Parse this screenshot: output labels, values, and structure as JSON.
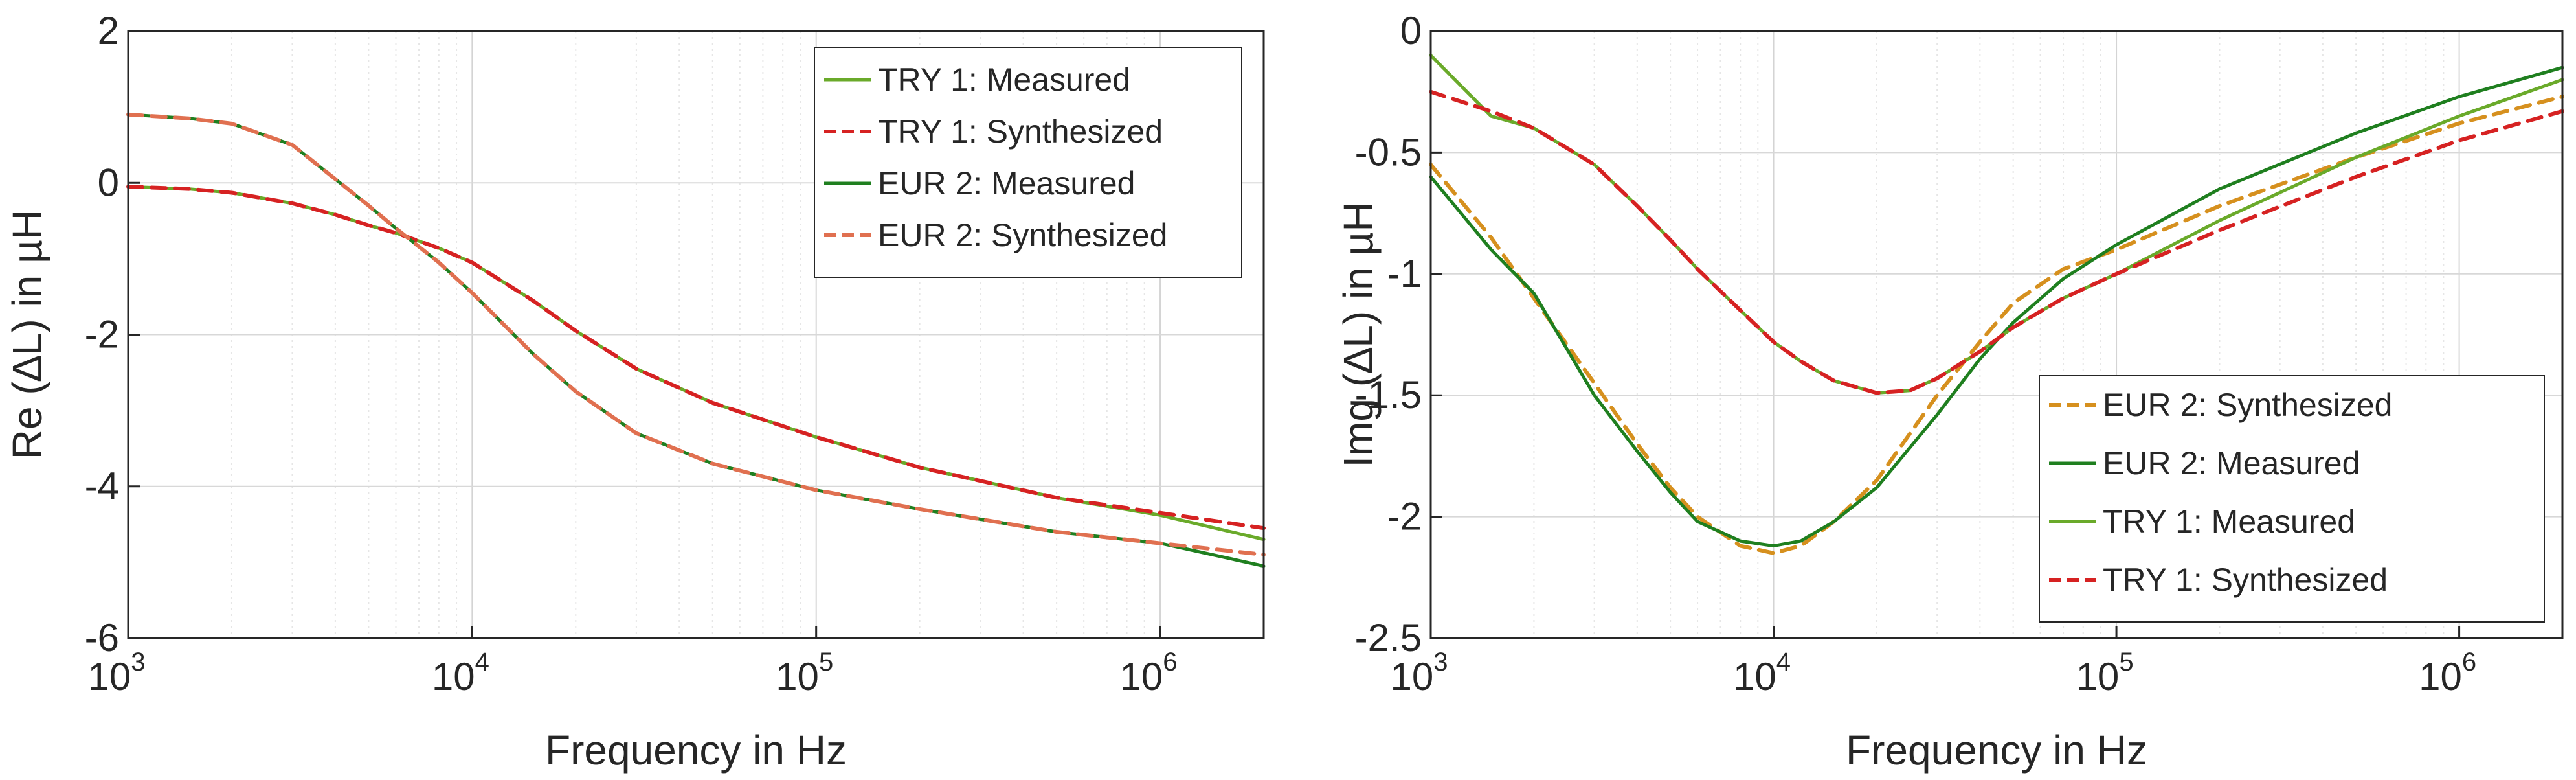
{
  "chart_data": [
    {
      "type": "line",
      "id": "left",
      "xlabel": "Frequency in Hz",
      "ylabel": "Re (∆L) in µH",
      "xscale": "log",
      "xlim": [
        1000,
        2000000
      ],
      "ylim": [
        -6,
        2
      ],
      "grid": true,
      "legend_position": "top-right",
      "x_ticks": [
        {
          "value": 1000,
          "base": "10",
          "exp": "3"
        },
        {
          "value": 10000,
          "base": "10",
          "exp": "4"
        },
        {
          "value": 100000,
          "base": "10",
          "exp": "5"
        },
        {
          "value": 1000000,
          "base": "10",
          "exp": "6"
        }
      ],
      "y_ticks": [
        {
          "value": 2,
          "label": "2"
        },
        {
          "value": 0,
          "label": "0"
        },
        {
          "value": -2,
          "label": "-2"
        },
        {
          "value": -4,
          "label": "-4"
        },
        {
          "value": -6,
          "label": "-6"
        }
      ],
      "series": [
        {
          "name": "TRY 1: Measured",
          "style": "solid",
          "color": "#6aaa2a",
          "width": 5,
          "x": [
            1000,
            1500,
            2000,
            3000,
            4000,
            5000,
            6000,
            8000,
            10000,
            15000,
            20000,
            30000,
            50000,
            100000,
            200000,
            500000,
            1000000,
            2000000
          ],
          "y": [
            -0.05,
            -0.08,
            -0.13,
            -0.27,
            -0.42,
            -0.56,
            -0.66,
            -0.86,
            -1.05,
            -1.55,
            -1.95,
            -2.45,
            -2.9,
            -3.35,
            -3.75,
            -4.15,
            -4.38,
            -4.7
          ]
        },
        {
          "name": "TRY 1: Synthesized",
          "style": "dashed",
          "color": "#d62222",
          "width": 6,
          "x": [
            1000,
            1500,
            2000,
            3000,
            4000,
            5000,
            6000,
            8000,
            10000,
            15000,
            20000,
            30000,
            50000,
            100000,
            200000,
            500000,
            1000000,
            2000000
          ],
          "y": [
            -0.05,
            -0.08,
            -0.13,
            -0.27,
            -0.42,
            -0.56,
            -0.66,
            -0.86,
            -1.05,
            -1.55,
            -1.95,
            -2.45,
            -2.9,
            -3.35,
            -3.75,
            -4.15,
            -4.35,
            -4.55
          ]
        },
        {
          "name": "EUR 2: Measured",
          "style": "solid",
          "color": "#1f7f1f",
          "width": 5,
          "x": [
            1000,
            1500,
            2000,
            3000,
            4000,
            5000,
            6000,
            8000,
            10000,
            15000,
            20000,
            30000,
            50000,
            100000,
            200000,
            500000,
            1000000,
            2000000
          ],
          "y": [
            0.9,
            0.85,
            0.78,
            0.5,
            0.05,
            -0.3,
            -0.6,
            -1.05,
            -1.45,
            -2.25,
            -2.75,
            -3.3,
            -3.7,
            -4.05,
            -4.3,
            -4.6,
            -4.75,
            -5.05
          ]
        },
        {
          "name": "EUR 2: Synthesized",
          "style": "dashed",
          "color": "#e07050",
          "width": 6,
          "x": [
            1000,
            1500,
            2000,
            3000,
            4000,
            5000,
            6000,
            8000,
            10000,
            15000,
            20000,
            30000,
            50000,
            100000,
            200000,
            500000,
            1000000,
            2000000
          ],
          "y": [
            0.9,
            0.85,
            0.78,
            0.5,
            0.05,
            -0.3,
            -0.6,
            -1.05,
            -1.45,
            -2.25,
            -2.75,
            -3.3,
            -3.7,
            -4.05,
            -4.3,
            -4.6,
            -4.75,
            -4.9
          ]
        }
      ]
    },
    {
      "type": "line",
      "id": "right",
      "xlabel": "Frequency in Hz",
      "ylabel": "Img (∆L) in µH",
      "xscale": "log",
      "xlim": [
        1000,
        2000000
      ],
      "ylim": [
        -2.5,
        0
      ],
      "grid": true,
      "legend_position": "bottom-right",
      "x_ticks": [
        {
          "value": 1000,
          "base": "10",
          "exp": "3"
        },
        {
          "value": 10000,
          "base": "10",
          "exp": "4"
        },
        {
          "value": 100000,
          "base": "10",
          "exp": "5"
        },
        {
          "value": 1000000,
          "base": "10",
          "exp": "6"
        }
      ],
      "y_ticks": [
        {
          "value": 0,
          "label": "0"
        },
        {
          "value": -0.5,
          "label": "-0.5"
        },
        {
          "value": -1,
          "label": "-1"
        },
        {
          "value": -1.5,
          "label": "-1.5"
        },
        {
          "value": -2,
          "label": "-2"
        },
        {
          "value": -2.5,
          "label": "-2.5"
        }
      ],
      "series": [
        {
          "name": "EUR 2: Synthesized",
          "style": "dashed",
          "color": "#d6901e",
          "width": 6,
          "x": [
            1000,
            1500,
            2000,
            3000,
            4000,
            5000,
            6000,
            8000,
            10000,
            12000,
            15000,
            20000,
            30000,
            40000,
            50000,
            70000,
            100000,
            200000,
            500000,
            1000000,
            2000000
          ],
          "y": [
            -0.55,
            -0.85,
            -1.1,
            -1.45,
            -1.7,
            -1.88,
            -2.0,
            -2.12,
            -2.15,
            -2.12,
            -2.02,
            -1.85,
            -1.5,
            -1.28,
            -1.12,
            -0.98,
            -0.9,
            -0.72,
            -0.52,
            -0.38,
            -0.27
          ]
        },
        {
          "name": "EUR 2: Measured",
          "style": "solid",
          "color": "#1f7f1f",
          "width": 5,
          "x": [
            1000,
            1500,
            2000,
            3000,
            4000,
            5000,
            6000,
            8000,
            10000,
            12000,
            15000,
            20000,
            30000,
            40000,
            50000,
            70000,
            100000,
            200000,
            500000,
            1000000,
            2000000
          ],
          "y": [
            -0.6,
            -0.9,
            -1.08,
            -1.5,
            -1.73,
            -1.9,
            -2.02,
            -2.1,
            -2.12,
            -2.1,
            -2.02,
            -1.88,
            -1.58,
            -1.35,
            -1.2,
            -1.02,
            -0.88,
            -0.65,
            -0.42,
            -0.27,
            -0.15
          ]
        },
        {
          "name": "TRY 1: Measured",
          "style": "solid",
          "color": "#6aaa2a",
          "width": 5,
          "x": [
            1000,
            1500,
            2000,
            3000,
            4000,
            5000,
            6000,
            8000,
            10000,
            12000,
            15000,
            20000,
            25000,
            30000,
            40000,
            50000,
            70000,
            100000,
            200000,
            500000,
            1000000,
            2000000
          ],
          "y": [
            -0.1,
            -0.35,
            -0.4,
            -0.55,
            -0.72,
            -0.86,
            -0.98,
            -1.15,
            -1.28,
            -1.36,
            -1.44,
            -1.49,
            -1.48,
            -1.43,
            -1.32,
            -1.22,
            -1.1,
            -1.0,
            -0.78,
            -0.52,
            -0.35,
            -0.2
          ]
        },
        {
          "name": "TRY 1: Synthesized",
          "style": "dashed",
          "color": "#d62222",
          "width": 6,
          "x": [
            1000,
            1500,
            2000,
            3000,
            4000,
            5000,
            6000,
            8000,
            10000,
            12000,
            15000,
            20000,
            25000,
            30000,
            40000,
            50000,
            70000,
            100000,
            200000,
            500000,
            1000000,
            2000000
          ],
          "y": [
            -0.25,
            -0.33,
            -0.4,
            -0.55,
            -0.72,
            -0.86,
            -0.98,
            -1.15,
            -1.28,
            -1.36,
            -1.44,
            -1.49,
            -1.48,
            -1.43,
            -1.32,
            -1.22,
            -1.1,
            -1.0,
            -0.82,
            -0.6,
            -0.45,
            -0.33
          ]
        }
      ]
    }
  ]
}
